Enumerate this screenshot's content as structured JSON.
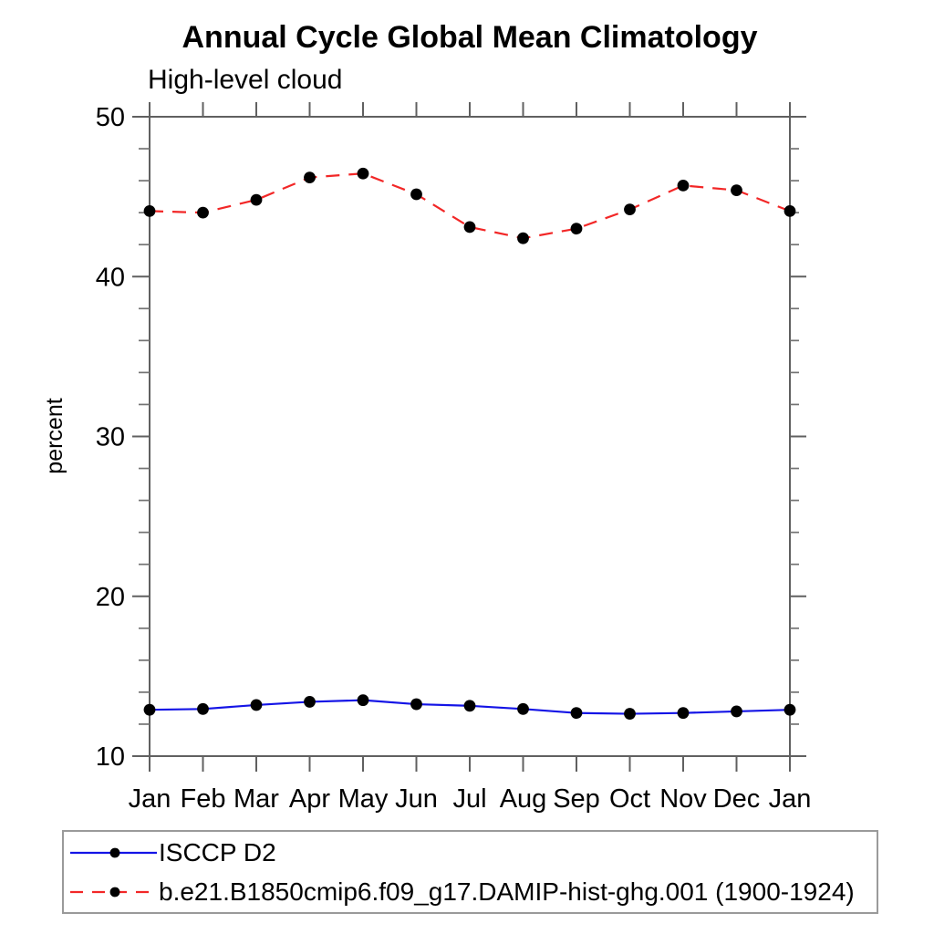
{
  "chart_data": {
    "type": "line",
    "title": "Annual Cycle Global Mean Climatology",
    "subtitle": "High-level cloud",
    "ylabel": "percent",
    "xlabel": "",
    "categories": [
      "Jan",
      "Feb",
      "Mar",
      "Apr",
      "May",
      "Jun",
      "Jul",
      "Aug",
      "Sep",
      "Oct",
      "Nov",
      "Dec",
      "Jan"
    ],
    "ylim": [
      10,
      50
    ],
    "y_major_ticks": [
      10,
      20,
      30,
      40,
      50
    ],
    "y_minor_step": 2,
    "grid": false,
    "legend_position": "bottom",
    "marker": "filled-circle",
    "marker_color": "#000000",
    "series": [
      {
        "name": "ISCCP D2",
        "line_style": "solid",
        "color": "#1414e6",
        "values": [
          12.9,
          12.95,
          13.2,
          13.4,
          13.5,
          13.25,
          13.15,
          12.95,
          12.7,
          12.65,
          12.7,
          12.8,
          12.9
        ]
      },
      {
        "name": "b.e21.B1850cmip6.f09_g17.DAMIP-hist-ghg.001 (1900-1924)",
        "line_style": "dashed",
        "color": "#f22727",
        "values": [
          44.1,
          44.0,
          44.8,
          46.2,
          46.45,
          45.15,
          43.1,
          42.4,
          43.0,
          44.2,
          45.7,
          45.4,
          44.1
        ]
      }
    ]
  }
}
